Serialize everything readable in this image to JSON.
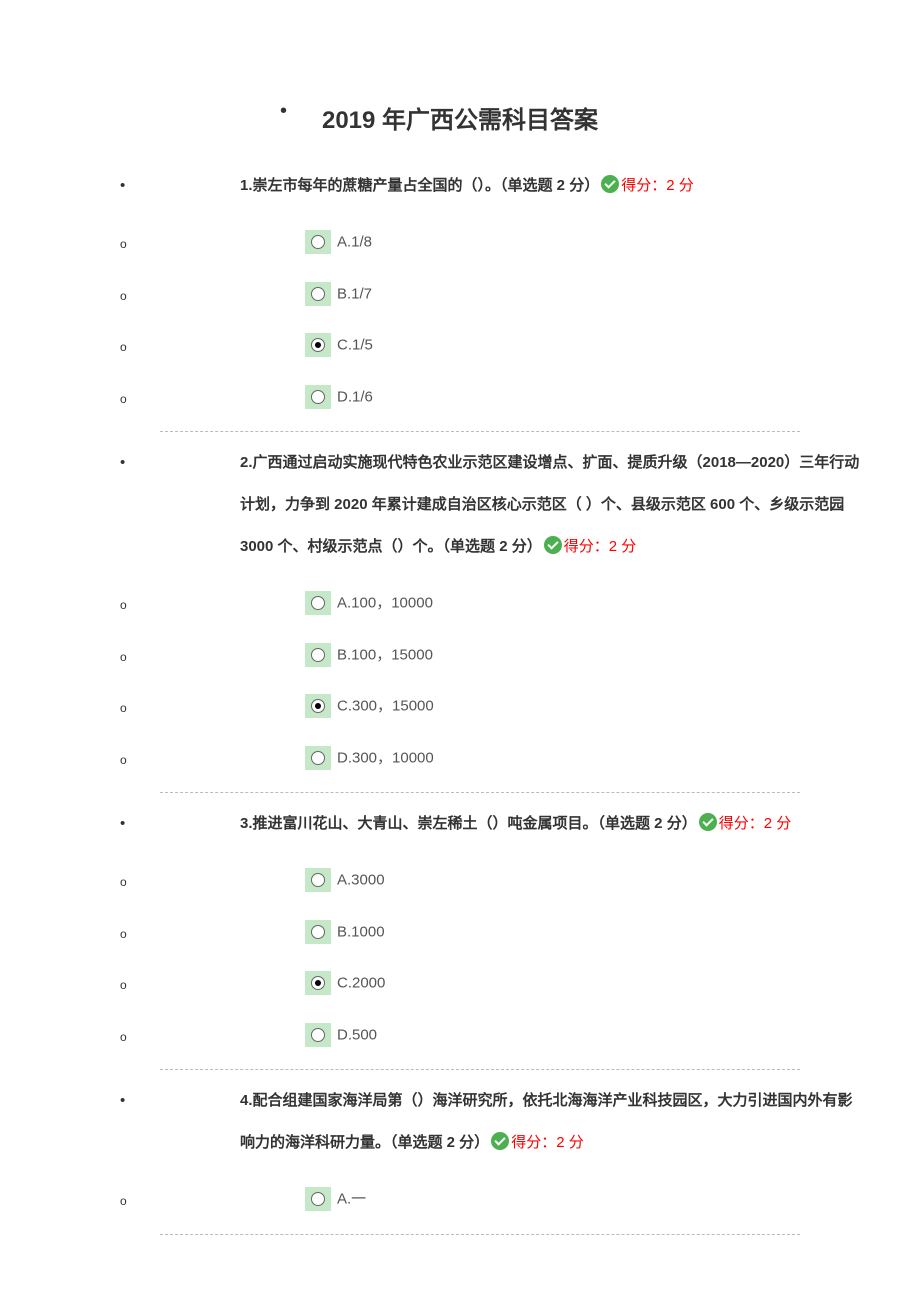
{
  "title": "2019 年广西公需科目答案",
  "score_text": "得分：2 分",
  "questions": [
    {
      "num": "1",
      "text": "1.崇左市每年的蔗糖产量占全国的（）。（单选题 2 分）",
      "options": [
        {
          "label": "A.1/8",
          "selected": false
        },
        {
          "label": "B.1/7",
          "selected": false
        },
        {
          "label": "C.1/5",
          "selected": true
        },
        {
          "label": "D.1/6",
          "selected": false
        }
      ]
    },
    {
      "num": "2",
      "text": "2.广西通过启动实施现代特色农业示范区建设增点、扩面、提质升级（2018—2020）三年行动计划，力争到 2020 年累计建成自治区核心示范区（ ）个、县级示范区 600 个、乡级示范园 3000 个、村级示范点（）个。（单选题 2 分）",
      "options": [
        {
          "label": "A.100，10000",
          "selected": false
        },
        {
          "label": "B.100，15000",
          "selected": false
        },
        {
          "label": "C.300，15000",
          "selected": true
        },
        {
          "label": "D.300，10000",
          "selected": false
        }
      ]
    },
    {
      "num": "3",
      "text": "3.推进富川花山、大青山、崇左稀土（）吨金属项目。（单选题 2 分）",
      "options": [
        {
          "label": "A.3000",
          "selected": false
        },
        {
          "label": "B.1000",
          "selected": false
        },
        {
          "label": "C.2000",
          "selected": true
        },
        {
          "label": "D.500",
          "selected": false
        }
      ]
    },
    {
      "num": "4",
      "text": "4.配合组建国家海洋局第（）海洋研究所，依托北海海洋产业科技园区，大力引进国内外有影响力的海洋科研力量。（单选题 2 分）",
      "options": [
        {
          "label": "A.一",
          "selected": false
        }
      ]
    }
  ]
}
